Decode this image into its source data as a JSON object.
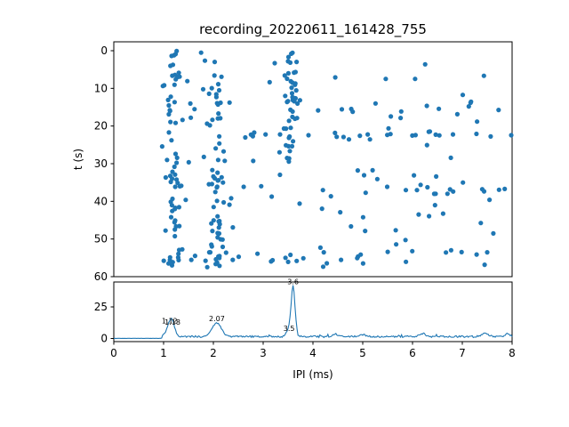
{
  "chart_data": {
    "title": "recording_20220611_161428_755",
    "marker_color": "#1f77b4",
    "line_color": "#1f77b4",
    "seed": 20220611,
    "subplots": [
      {
        "type": "scatter",
        "name": "ipi-vs-time-scatter",
        "xlabel": "",
        "ylabel": "t (s)",
        "xlim": [
          0,
          8
        ],
        "ylim": [
          60,
          0
        ],
        "yticks": [
          0,
          10,
          20,
          30,
          40,
          50,
          60
        ],
        "clusters": [
          {
            "name": "band-1.2",
            "x_center": 1.2,
            "x_sd": 0.1,
            "t_min": 0,
            "t_max": 58,
            "count": 70
          },
          {
            "name": "band-2.05",
            "x_center": 2.05,
            "x_sd": 0.09,
            "t_min": 0,
            "t_max": 58,
            "count": 60
          },
          {
            "name": "band-3.57",
            "x_center": 3.57,
            "x_sd": 0.08,
            "t_min": 0,
            "t_max": 30,
            "count": 45
          },
          {
            "name": "row-22",
            "x_min": 2.3,
            "x_max": 8.0,
            "t_center": 22.5,
            "t_sd": 0.6,
            "count": 22
          },
          {
            "name": "row-15",
            "x_min": 3.2,
            "x_max": 7.6,
            "t_center": 15.0,
            "t_sd": 0.5,
            "count": 8
          },
          {
            "name": "row-37",
            "x_min": 4.0,
            "x_max": 8.0,
            "t_center": 37.5,
            "t_sd": 0.6,
            "count": 12
          },
          {
            "name": "row-55",
            "x_min": 1.0,
            "x_max": 8.0,
            "t_center": 55.0,
            "t_sd": 1.2,
            "count": 26
          },
          {
            "name": "background",
            "x_min": 1.0,
            "x_max": 8.0,
            "t_min": 0,
            "t_max": 58,
            "count": 85
          }
        ]
      },
      {
        "type": "line",
        "name": "ipi-histogram",
        "xlabel": "IPI (ms)",
        "ylabel": "",
        "xlim": [
          0,
          8
        ],
        "ylim": [
          0,
          45
        ],
        "xticks": [
          0,
          1,
          2,
          3,
          4,
          5,
          6,
          7,
          8
        ],
        "yticks": [
          0,
          25
        ],
        "onset_x": 0.98,
        "baseline": 0.8,
        "noise": 1.4,
        "step": 0.02,
        "peaks": [
          {
            "x": 1.12,
            "h": 9,
            "w": 0.06
          },
          {
            "x": 1.18,
            "h": 8,
            "w": 0.05
          },
          {
            "x": 2.07,
            "h": 11,
            "w": 0.09
          },
          {
            "x": 3.5,
            "h": 5,
            "w": 0.04
          },
          {
            "x": 3.6,
            "h": 40,
            "w": 0.04
          },
          {
            "x": 4.45,
            "h": 2,
            "w": 0.05
          },
          {
            "x": 5.0,
            "h": 1.5,
            "w": 0.05
          },
          {
            "x": 6.2,
            "h": 2.5,
            "w": 0.05
          },
          {
            "x": 7.45,
            "h": 2.5,
            "w": 0.06
          },
          {
            "x": 7.9,
            "h": 2,
            "w": 0.05
          }
        ],
        "annotations": [
          {
            "x": 1.12,
            "y": 10.5,
            "label": "1.12"
          },
          {
            "x": 1.18,
            "y": 9.5,
            "label": "1.18"
          },
          {
            "x": 2.07,
            "y": 12.5,
            "label": "2.07"
          },
          {
            "x": 3.6,
            "y": 41.5,
            "label": "3.6"
          },
          {
            "x": 3.52,
            "y": 4.5,
            "label": "3.5"
          }
        ]
      }
    ]
  }
}
